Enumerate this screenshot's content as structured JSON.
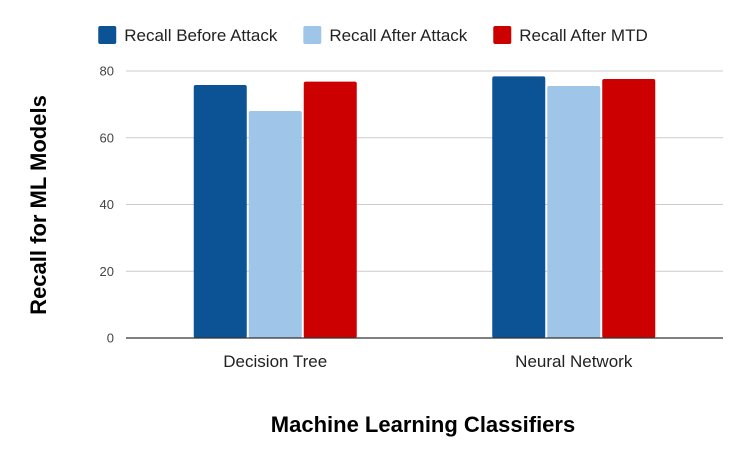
{
  "chart_data": {
    "type": "bar",
    "title": "",
    "xlabel": "Machine Learning Classifiers",
    "ylabel": "Recall for ML Models",
    "categories": [
      "Decision Tree",
      "Neural Network"
    ],
    "series": [
      {
        "name": "Recall Before Attack",
        "color": "#0b5394",
        "values": [
          75.8,
          78.4
        ]
      },
      {
        "name": "Recall After Attack",
        "color": "#9fc5e8",
        "values": [
          68.0,
          75.5
        ]
      },
      {
        "name": "Recall After MTD",
        "color": "#cc0000",
        "values": [
          76.8,
          77.6
        ]
      }
    ],
    "ylim": [
      0,
      80
    ],
    "yticks": [
      0,
      20,
      40,
      60,
      80
    ],
    "grid": true,
    "legend_position": "top"
  }
}
